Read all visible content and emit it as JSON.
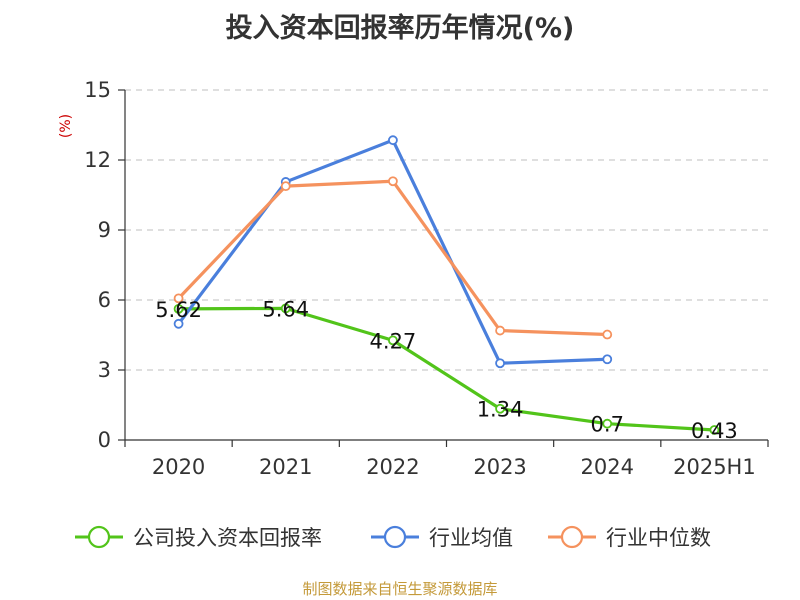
{
  "chart_data": {
    "type": "line",
    "title": "投入资本回报率历年情况(%)",
    "ylabel": "(%)",
    "xlabel": "",
    "categories": [
      "2020",
      "2021",
      "2022",
      "2023",
      "2024",
      "2025H1"
    ],
    "ylim": [
      0,
      15
    ],
    "yticks": [
      "0",
      "3",
      "6",
      "9",
      "12",
      "15"
    ],
    "grid": true,
    "legend_position": "bottom",
    "series": [
      {
        "name": "公司投入资本回报率",
        "color": "#52c41a",
        "values": [
          5.62,
          5.64,
          4.27,
          1.34,
          0.7,
          0.43
        ],
        "labels": [
          "5.62",
          "5.64",
          "4.27",
          "1.34",
          "0.7",
          "0.43"
        ]
      },
      {
        "name": "行业均值",
        "color": "#4a7fdc",
        "values": [
          4.98,
          11.06,
          12.85,
          3.29,
          3.46,
          null
        ]
      },
      {
        "name": "行业中位数",
        "color": "#f5925e",
        "values": [
          6.07,
          10.88,
          11.09,
          4.69,
          4.52,
          null
        ]
      }
    ]
  },
  "source": "制图数据来自恒生聚源数据库"
}
